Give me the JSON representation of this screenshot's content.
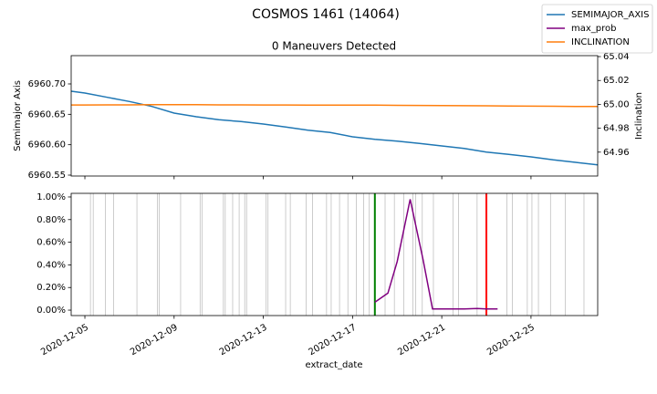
{
  "title": "COSMOS 1461 (14064)",
  "legend": "upper right",
  "chart_data": [
    {
      "type": "line",
      "title": "0 Maneuvers Detected",
      "ylabel": "Semimajor Axis",
      "y2label": "Inclination",
      "xlim": [
        "2020-12-04T09:15",
        "2020-12-27T23:45"
      ],
      "xticks": [
        "2020-12-05",
        "2020-12-09",
        "2020-12-13",
        "2020-12-17",
        "2020-12-21",
        "2020-12-25"
      ],
      "ylim": [
        6960.5485,
        6960.7465
      ],
      "yticks": [
        {
          "value": 6960.55,
          "label": "6960.55"
        },
        {
          "value": 6960.6,
          "label": "6960.60"
        },
        {
          "value": 6960.65,
          "label": "6960.65"
        },
        {
          "value": 6960.7,
          "label": "6960.70"
        }
      ],
      "y2lim": [
        64.94,
        65.0408
      ],
      "y2ticks": [
        64.96,
        64.98,
        {
          "value": 65,
          "label": "65.00"
        },
        65.02,
        65.04
      ],
      "x": [
        "2020-12-04T09:15",
        "2020-12-05",
        "2020-12-06",
        "2020-12-07",
        "2020-12-08",
        "2020-12-09",
        "2020-12-10",
        "2020-12-11",
        "2020-12-12",
        "2020-12-13",
        "2020-12-14",
        "2020-12-15",
        "2020-12-16",
        "2020-12-17",
        "2020-12-18",
        "2020-12-19",
        "2020-12-20",
        "2020-12-21",
        "2020-12-22",
        "2020-12-23",
        "2020-12-24",
        "2020-12-25",
        "2020-12-26",
        "2020-12-27",
        "2020-12-27T23:45"
      ],
      "series": [
        {
          "name": "SEMIMAJOR_AXIS",
          "color": "#1f77b4",
          "values": [
            6960.688,
            6960.685,
            6960.678,
            6960.671,
            6960.663,
            6960.652,
            6960.646,
            6960.641,
            6960.638,
            6960.634,
            6960.629,
            6960.624,
            6960.62,
            6960.613,
            6960.609,
            6960.606,
            6960.602,
            6960.598,
            6960.594,
            6960.588,
            6960.584,
            6960.58,
            6960.575,
            6960.571,
            6960.567
          ]
        },
        {
          "name": "INCLINATION",
          "color": "#ff7f0e",
          "axis": "y2",
          "values": [
            64.9995,
            64.9995,
            64.9996,
            64.9996,
            64.9997,
            64.9997,
            64.9997,
            64.9996,
            64.9996,
            64.9995,
            64.9995,
            64.9994,
            64.9993,
            64.9993,
            64.9993,
            64.9992,
            64.9991,
            64.999,
            64.9989,
            64.9988,
            64.9986,
            64.9985,
            64.9984,
            64.9983,
            64.9982
          ]
        }
      ]
    },
    {
      "type": "line",
      "xlabel": "extract_date",
      "xlim": [
        "2020-12-04T09:15",
        "2020-12-27T23:45"
      ],
      "xticks": [
        "2020-12-05",
        "2020-12-09",
        "2020-12-13",
        "2020-12-17",
        "2020-12-21",
        "2020-12-25"
      ],
      "ylim": [
        -0.048,
        1.032
      ],
      "yticks": [
        {
          "value": 0,
          "label": "0.00%"
        },
        {
          "value": 0.2,
          "label": "0.20%"
        },
        {
          "value": 0.4,
          "label": "0.40%"
        },
        {
          "value": 0.6,
          "label": "0.60%"
        },
        {
          "value": 0.8,
          "label": "0.80%"
        },
        {
          "value": 1,
          "label": "1.00%"
        }
      ],
      "x": [
        "2020-12-18T00:00",
        "2020-12-18T14:00",
        "2020-12-19T00:00",
        "2020-12-19T14:00",
        "2020-12-20T04:00",
        "2020-12-20T14:00",
        "2020-12-21T06:00",
        "2020-12-22T00:00",
        "2020-12-22T14:00",
        "2020-12-23T00:00",
        "2020-12-23T12:00"
      ],
      "series": [
        {
          "name": "max_prob",
          "color": "#800080",
          "values": [
            0.07,
            0.15,
            0.43,
            0.98,
            0.44,
            0.01,
            0.01,
            0.01,
            0.015,
            0.01,
            0.01
          ]
        }
      ],
      "event_lines": {
        "color": "#c0c0c0",
        "x": [
          "2020-12-05T06:00",
          "2020-12-05T09:00",
          "2020-12-05T22:00",
          "2020-12-06T07:00",
          "2020-12-07T08:00",
          "2020-12-08T06:00",
          "2020-12-08T08:00",
          "2020-12-09T07:00",
          "2020-12-10T04:00",
          "2020-12-10T06:00",
          "2020-12-11T05:00",
          "2020-12-11T07:00",
          "2020-12-11T15:00",
          "2020-12-11T22:00",
          "2020-12-12T04:00",
          "2020-12-12T06:00",
          "2020-12-13T03:00",
          "2020-12-13T05:00",
          "2020-12-14T00:00",
          "2020-12-14T05:00",
          "2020-12-14T22:00",
          "2020-12-15T05:00",
          "2020-12-15T20:00",
          "2020-12-16T01:00",
          "2020-12-16T10:00",
          "2020-12-16T19:00",
          "2020-12-17T04:00",
          "2020-12-17T12:00",
          "2020-12-17T18:00",
          "2020-12-18T11:00",
          "2020-12-18T21:00",
          "2020-12-19T07:00",
          "2020-12-19T17:00",
          "2020-12-19T20:00",
          "2020-12-20T03:00",
          "2020-12-20T15:00",
          "2020-12-21T12:00",
          "2020-12-21T18:00",
          "2020-12-22T14:00",
          "2020-12-23T22:00",
          "2020-12-24T04:00",
          "2020-12-24T20:00",
          "2020-12-25T01:00",
          "2020-12-25T08:00",
          "2020-12-25T21:00",
          "2020-12-26T13:00",
          "2020-12-27T09:00"
        ]
      },
      "vlines": [
        {
          "x": "2020-12-18T00:00",
          "color": "#008000"
        },
        {
          "x": "2020-12-23T00:00",
          "color": "#ff0000"
        }
      ]
    }
  ]
}
